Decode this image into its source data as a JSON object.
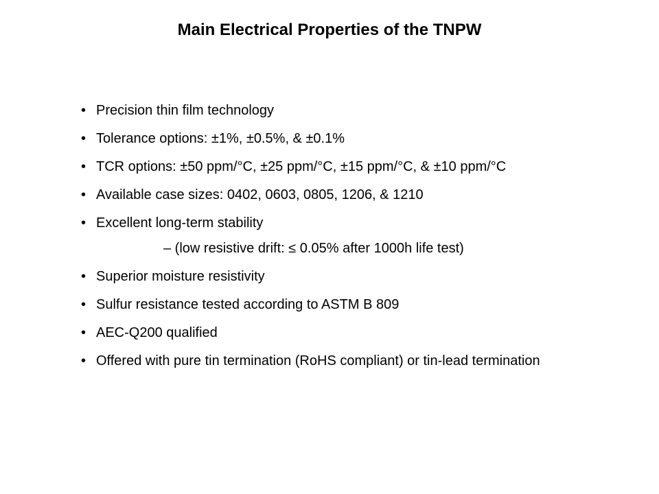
{
  "slide": {
    "title": "Main Electrical Properties of the TNPW",
    "title_fontsize": 24,
    "title_fontweight": 700,
    "body_fontsize": 20,
    "text_color": "#000000",
    "background_color": "#ffffff",
    "font_family": "Verdana",
    "bullets": [
      "Precision thin film technology",
      "Tolerance options: ±1%, ±0.5%, & ±0.1%",
      "TCR options: ±50 ppm/°C, ±25 ppm/°C, ±15 ppm/°C, & ±10 ppm/°C",
      "Available case sizes: 0402, 0603, 0805, 1206, & 1210",
      "Excellent long-term stability",
      "Superior moisture resistivity",
      "Sulfur resistance tested according to ASTM B 809",
      "AEC-Q200 qualified",
      "Offered with pure tin termination (RoHS compliant) or tin-lead termination"
    ],
    "sub_after_index": 4,
    "sub_text": "– (low resistive drift: ≤ 0.05% after 1000h life test)"
  }
}
